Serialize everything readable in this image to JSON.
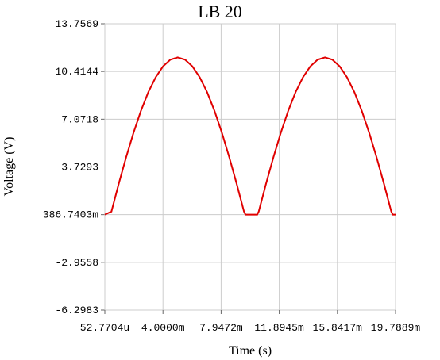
{
  "chart_data": {
    "type": "line",
    "title": "LB 20",
    "x_label": "Time (s)",
    "y_label": "Voltage (V)",
    "x": [
      5.27704e-05,
      0.0005,
      0.001,
      0.0015,
      0.002,
      0.0025,
      0.003,
      0.0035,
      0.004,
      0.0045,
      0.005,
      0.0055,
      0.006,
      0.0065,
      0.007,
      0.0075,
      0.008,
      0.0085,
      0.009,
      0.0095,
      0.0096,
      0.0104,
      0.0105,
      0.011,
      0.0115,
      0.012,
      0.0125,
      0.013,
      0.0135,
      0.014,
      0.0145,
      0.015,
      0.0155,
      0.016,
      0.0165,
      0.017,
      0.0175,
      0.018,
      0.0185,
      0.019,
      0.0195,
      0.0196,
      0.0197889
    ],
    "series": [
      {
        "name": "V",
        "color": "#e00000",
        "values": [
          0.39,
          0.6,
          2.56,
          4.41,
          6.12,
          7.65,
          8.96,
          10.0,
          10.77,
          11.24,
          11.4,
          11.24,
          10.77,
          10.0,
          8.96,
          7.65,
          6.12,
          4.41,
          2.56,
          0.6,
          0.39,
          0.39,
          0.6,
          2.56,
          4.41,
          6.12,
          7.65,
          8.96,
          10.0,
          10.77,
          11.24,
          11.4,
          11.24,
          10.77,
          10.0,
          8.96,
          7.65,
          6.12,
          4.41,
          2.56,
          0.6,
          0.39,
          0.39
        ]
      }
    ],
    "xlim": [
      5.27704e-05,
      0.0197889
    ],
    "xticks": [
      {
        "value": 5.27704e-05,
        "label": "52.7704u"
      },
      {
        "value": 0.004,
        "label": "4.0000m"
      },
      {
        "value": 0.0079472,
        "label": "7.9472m"
      },
      {
        "value": 0.0118945,
        "label": "11.8945m"
      },
      {
        "value": 0.0158417,
        "label": "15.8417m"
      },
      {
        "value": 0.0197889,
        "label": "19.7889m"
      }
    ],
    "ylim": [
      -6.2983,
      13.7569
    ],
    "yticks": [
      -6.2983,
      -2.9558,
      {
        "value": 0.3867403,
        "label": "386.7403m"
      },
      3.7293,
      7.0718,
      10.4144,
      13.7569
    ],
    "grid": true
  }
}
